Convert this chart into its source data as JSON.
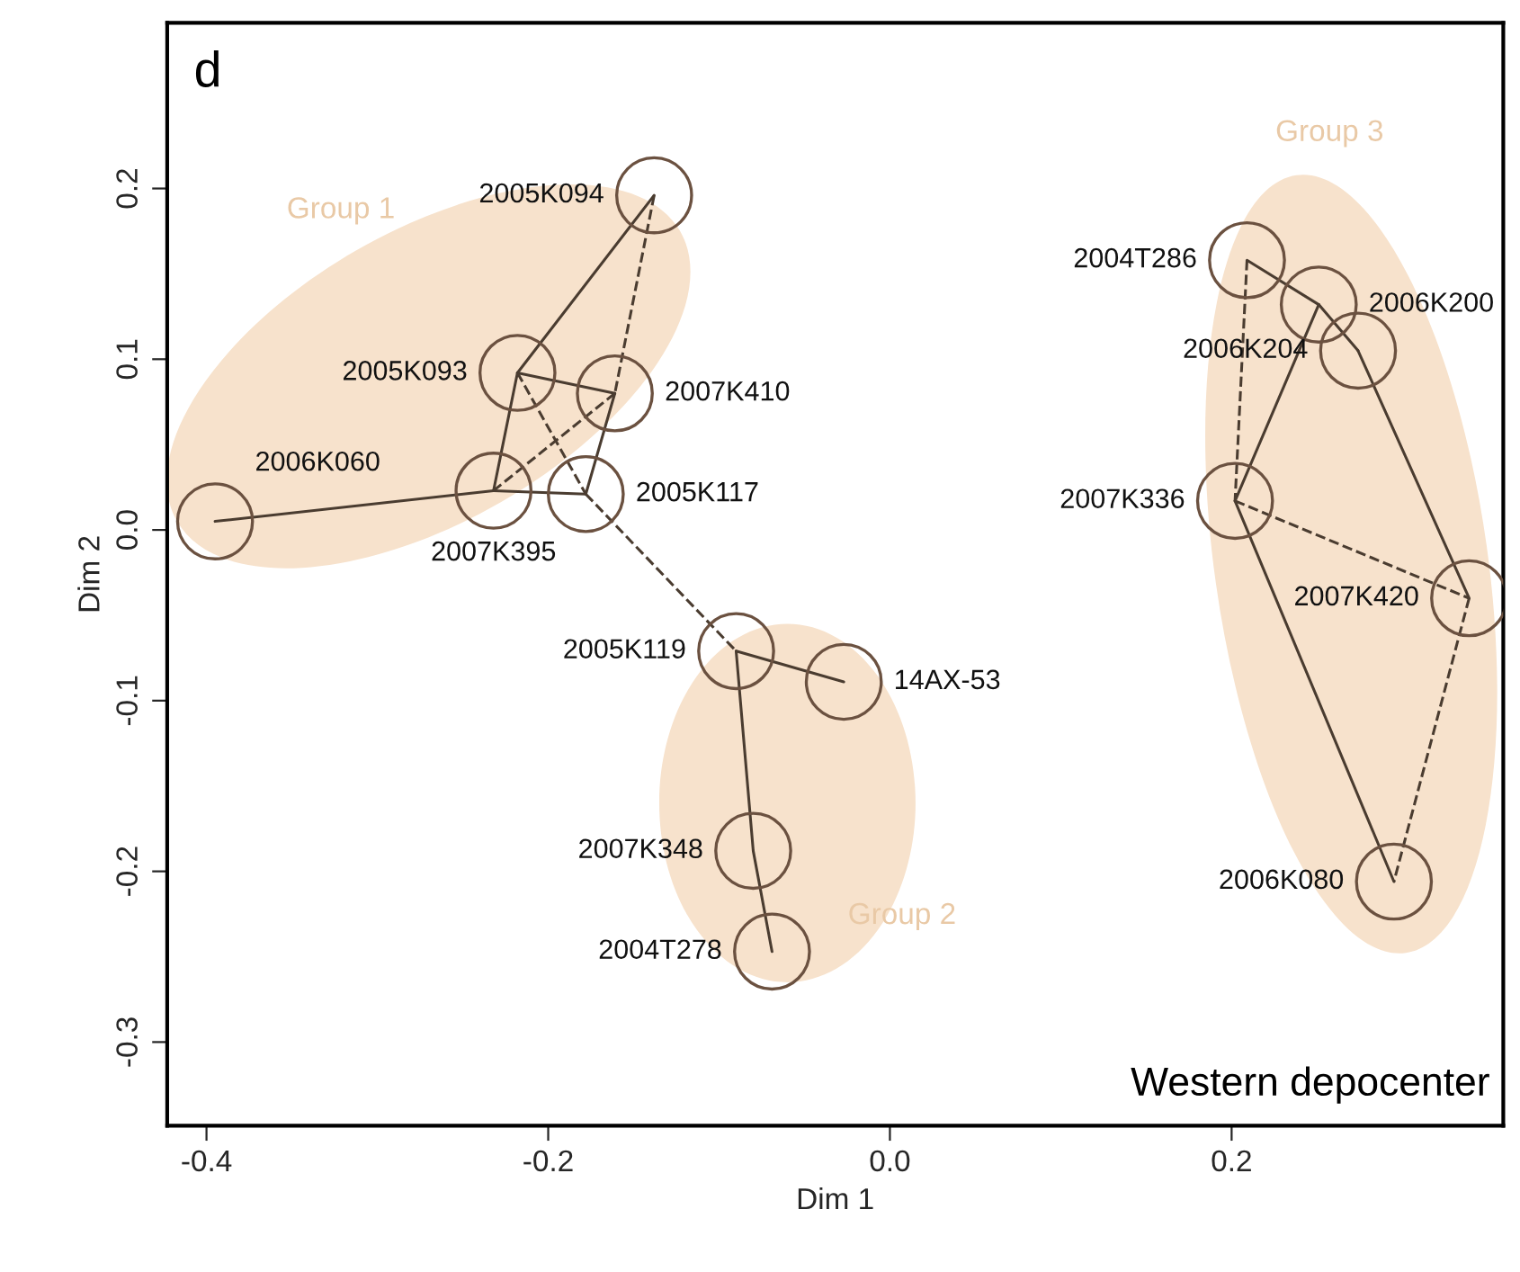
{
  "chart_data": {
    "type": "scatter",
    "xlabel": "Dim 1",
    "ylabel": "Dim 2",
    "xlim": [
      -0.423,
      0.359
    ],
    "ylim": [
      -0.349,
      0.297
    ],
    "xticks": [
      -0.4,
      -0.2,
      {
        "value": 0,
        "label": "0.0"
      },
      0.2
    ],
    "yticks": [
      -0.3,
      -0.2,
      -0.1,
      {
        "value": 0,
        "label": "0.0"
      },
      0.1,
      0.2
    ],
    "grid": false,
    "annotations": [
      "d",
      "Western depocenter",
      "Group 1",
      "Group 2",
      "Group 3"
    ],
    "series": [
      {
        "type": "line",
        "line_style": "solid",
        "color": "#4a3c30",
        "x": [
          -0.138,
          -0.218
        ],
        "values": [
          0.196,
          0.092
        ]
      },
      {
        "type": "line",
        "line_style": "dashed",
        "color": "#4a3c30",
        "x": [
          -0.138,
          -0.161
        ],
        "values": [
          0.196,
          0.08
        ]
      },
      {
        "type": "line",
        "line_style": "solid",
        "color": "#4a3c30",
        "x": [
          -0.218,
          -0.232
        ],
        "values": [
          0.092,
          0.023
        ]
      },
      {
        "type": "line",
        "line_style": "solid",
        "color": "#4a3c30",
        "x": [
          -0.218,
          -0.161
        ],
        "values": [
          0.092,
          0.08
        ]
      },
      {
        "type": "line",
        "line_style": "dashed",
        "color": "#4a3c30",
        "x": [
          -0.218,
          -0.178
        ],
        "values": [
          0.092,
          0.021
        ]
      },
      {
        "type": "line",
        "line_style": "solid",
        "color": "#4a3c30",
        "x": [
          -0.161,
          -0.178
        ],
        "values": [
          0.08,
          0.021
        ]
      },
      {
        "type": "line",
        "line_style": "dashed",
        "color": "#4a3c30",
        "x": [
          -0.161,
          -0.232
        ],
        "values": [
          0.08,
          0.023
        ]
      },
      {
        "type": "line",
        "line_style": "solid",
        "color": "#4a3c30",
        "x": [
          -0.232,
          -0.395
        ],
        "values": [
          0.023,
          0.005
        ]
      },
      {
        "type": "line",
        "line_style": "solid",
        "color": "#4a3c30",
        "x": [
          -0.232,
          -0.178
        ],
        "values": [
          0.023,
          0.021
        ]
      },
      {
        "type": "line",
        "line_style": "dashed",
        "color": "#4a3c30",
        "x": [
          -0.178,
          -0.09
        ],
        "values": [
          0.021,
          -0.071
        ]
      },
      {
        "type": "line",
        "line_style": "solid",
        "color": "#4a3c30",
        "x": [
          -0.09,
          -0.027
        ],
        "values": [
          -0.071,
          -0.089
        ]
      },
      {
        "type": "line",
        "line_style": "solid",
        "color": "#4a3c30",
        "x": [
          -0.09,
          -0.08
        ],
        "values": [
          -0.071,
          -0.188
        ]
      },
      {
        "type": "line",
        "line_style": "solid",
        "color": "#4a3c30",
        "x": [
          -0.08,
          -0.069
        ],
        "values": [
          -0.188,
          -0.247
        ]
      },
      {
        "type": "line",
        "line_style": "dashed",
        "color": "#4a3c30",
        "x": [
          0.209,
          0.202
        ],
        "values": [
          0.158,
          0.017
        ]
      },
      {
        "type": "line",
        "line_style": "solid",
        "color": "#4a3c30",
        "x": [
          0.209,
          0.251
        ],
        "values": [
          0.158,
          0.132
        ]
      },
      {
        "type": "line",
        "line_style": "solid",
        "color": "#4a3c30",
        "x": [
          0.251,
          0.274
        ],
        "values": [
          0.132,
          0.105
        ]
      },
      {
        "type": "line",
        "line_style": "solid",
        "color": "#4a3c30",
        "x": [
          0.202,
          0.251
        ],
        "values": [
          0.017,
          0.132
        ]
      },
      {
        "type": "line",
        "line_style": "solid",
        "color": "#4a3c30",
        "x": [
          0.274,
          0.339
        ],
        "values": [
          0.105,
          -0.04
        ]
      },
      {
        "type": "line",
        "line_style": "dashed",
        "color": "#4a3c30",
        "x": [
          0.202,
          0.339
        ],
        "values": [
          0.017,
          -0.04
        ]
      },
      {
        "type": "line",
        "line_style": "solid",
        "color": "#4a3c30",
        "x": [
          0.202,
          0.295
        ],
        "values": [
          0.017,
          -0.206
        ]
      },
      {
        "type": "line",
        "line_style": "dashed",
        "color": "#4a3c30",
        "x": [
          0.339,
          0.295
        ],
        "values": [
          -0.04,
          -0.206
        ]
      },
      {
        "type": "scatter",
        "marker": "circle",
        "color": "#6b5140",
        "x": [
          -0.138,
          -0.218,
          -0.161,
          -0.232,
          -0.178,
          -0.395,
          -0.09,
          -0.027,
          -0.08,
          -0.069,
          0.209,
          0.251,
          0.274,
          0.202,
          0.339,
          0.295
        ],
        "values": [
          0.196,
          0.092,
          0.08,
          0.023,
          0.021,
          0.005,
          -0.071,
          -0.089,
          -0.188,
          -0.247,
          0.158,
          0.132,
          0.105,
          0.017,
          -0.04,
          -0.206
        ],
        "value_labels": [
          "2005K094",
          "2005K093",
          "2007K410",
          "2007K395",
          "2005K117",
          "2006K060",
          "2005K119",
          "14AX-53",
          "2007K348",
          "2004T278",
          "2004T286",
          "2006K200",
          "2006K204",
          "2007K336",
          "2007K420",
          "2006K080"
        ]
      }
    ]
  }
}
